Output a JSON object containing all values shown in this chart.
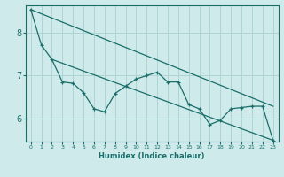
{
  "xlabel": "Humidex (Indice chaleur)",
  "ylabel": "",
  "bg_color": "#ceeaea",
  "line_color": "#1a6e6a",
  "grid_color": "#afd4d4",
  "xlim": [
    -0.5,
    23.5
  ],
  "ylim": [
    5.45,
    8.65
  ],
  "yticks": [
    6,
    7,
    8
  ],
  "xticks": [
    0,
    1,
    2,
    3,
    4,
    5,
    6,
    7,
    8,
    9,
    10,
    11,
    12,
    13,
    14,
    15,
    16,
    17,
    18,
    19,
    20,
    21,
    22,
    23
  ],
  "data_x": [
    0,
    1,
    2,
    3,
    4,
    5,
    6,
    7,
    8,
    9,
    10,
    11,
    12,
    13,
    14,
    15,
    16,
    17,
    18,
    19,
    20,
    21,
    22,
    23
  ],
  "data_y": [
    8.55,
    7.72,
    7.38,
    6.85,
    6.82,
    6.6,
    6.22,
    6.15,
    6.58,
    6.75,
    6.92,
    7.0,
    7.08,
    6.85,
    6.85,
    6.32,
    6.22,
    5.85,
    5.95,
    6.22,
    6.25,
    6.28,
    6.28,
    5.48
  ],
  "trend1_x": [
    0,
    23
  ],
  "trend1_y": [
    8.55,
    6.28
  ],
  "trend2_x": [
    2,
    23
  ],
  "trend2_y": [
    7.38,
    5.48
  ]
}
